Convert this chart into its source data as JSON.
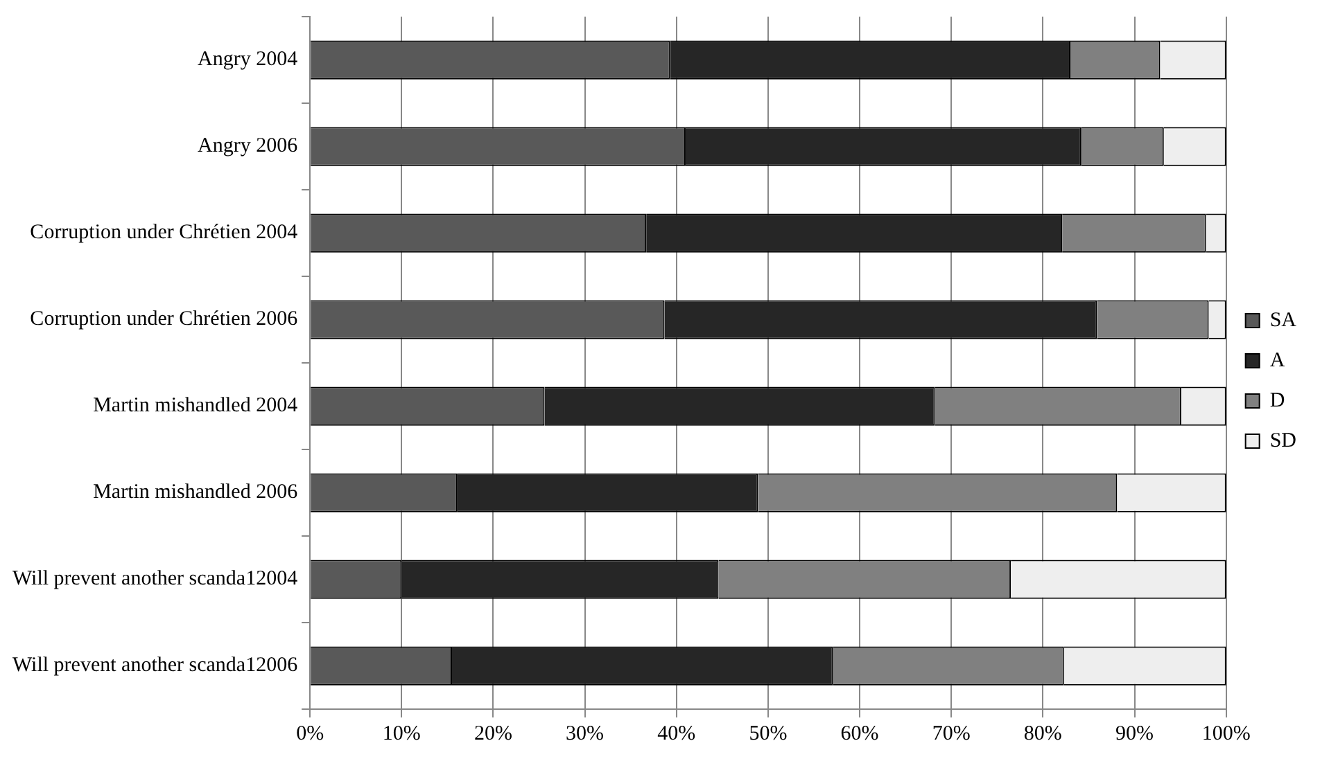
{
  "chart_data": {
    "type": "bar",
    "orientation": "horizontal",
    "stacked": true,
    "categories": [
      "Angry 2004",
      "Angry 2006",
      "Corruption under Chrétien 2004",
      "Corruption under Chrétien 2006",
      "Martin mishandled 2004",
      "Martin mishandled 2006",
      "Will prevent another scanda12004",
      "Will prevent another scanda12006"
    ],
    "series": [
      {
        "name": "SA",
        "color": "#595959",
        "values": [
          39.3,
          41.0,
          36.7,
          38.7,
          25.6,
          16.1,
          10.0,
          15.5
        ]
      },
      {
        "name": "A",
        "color": "#262626",
        "values": [
          43.7,
          43.2,
          45.4,
          47.2,
          42.6,
          32.8,
          34.6,
          41.6
        ]
      },
      {
        "name": "D",
        "color": "#808080",
        "values": [
          9.8,
          9.0,
          15.7,
          12.2,
          26.9,
          39.2,
          31.9,
          25.2
        ]
      },
      {
        "name": "SD",
        "color": "#eeeeee",
        "values": [
          7.2,
          6.8,
          2.2,
          1.9,
          4.9,
          11.9,
          23.5,
          17.7
        ]
      }
    ],
    "xlim": [
      0,
      100
    ],
    "xticks": [
      {
        "value": 0,
        "label": "0%"
      },
      {
        "value": 10,
        "label": "10%"
      },
      {
        "value": 20,
        "label": "20%"
      },
      {
        "value": 30,
        "label": "30%"
      },
      {
        "value": 40,
        "label": "40%"
      },
      {
        "value": 50,
        "label": "50%"
      },
      {
        "value": 60,
        "label": "60%"
      },
      {
        "value": 70,
        "label": "70%"
      },
      {
        "value": 80,
        "label": "80%"
      },
      {
        "value": 90,
        "label": "90%"
      },
      {
        "value": 100,
        "label": "100%"
      }
    ],
    "grid": "x",
    "legend": "right"
  }
}
